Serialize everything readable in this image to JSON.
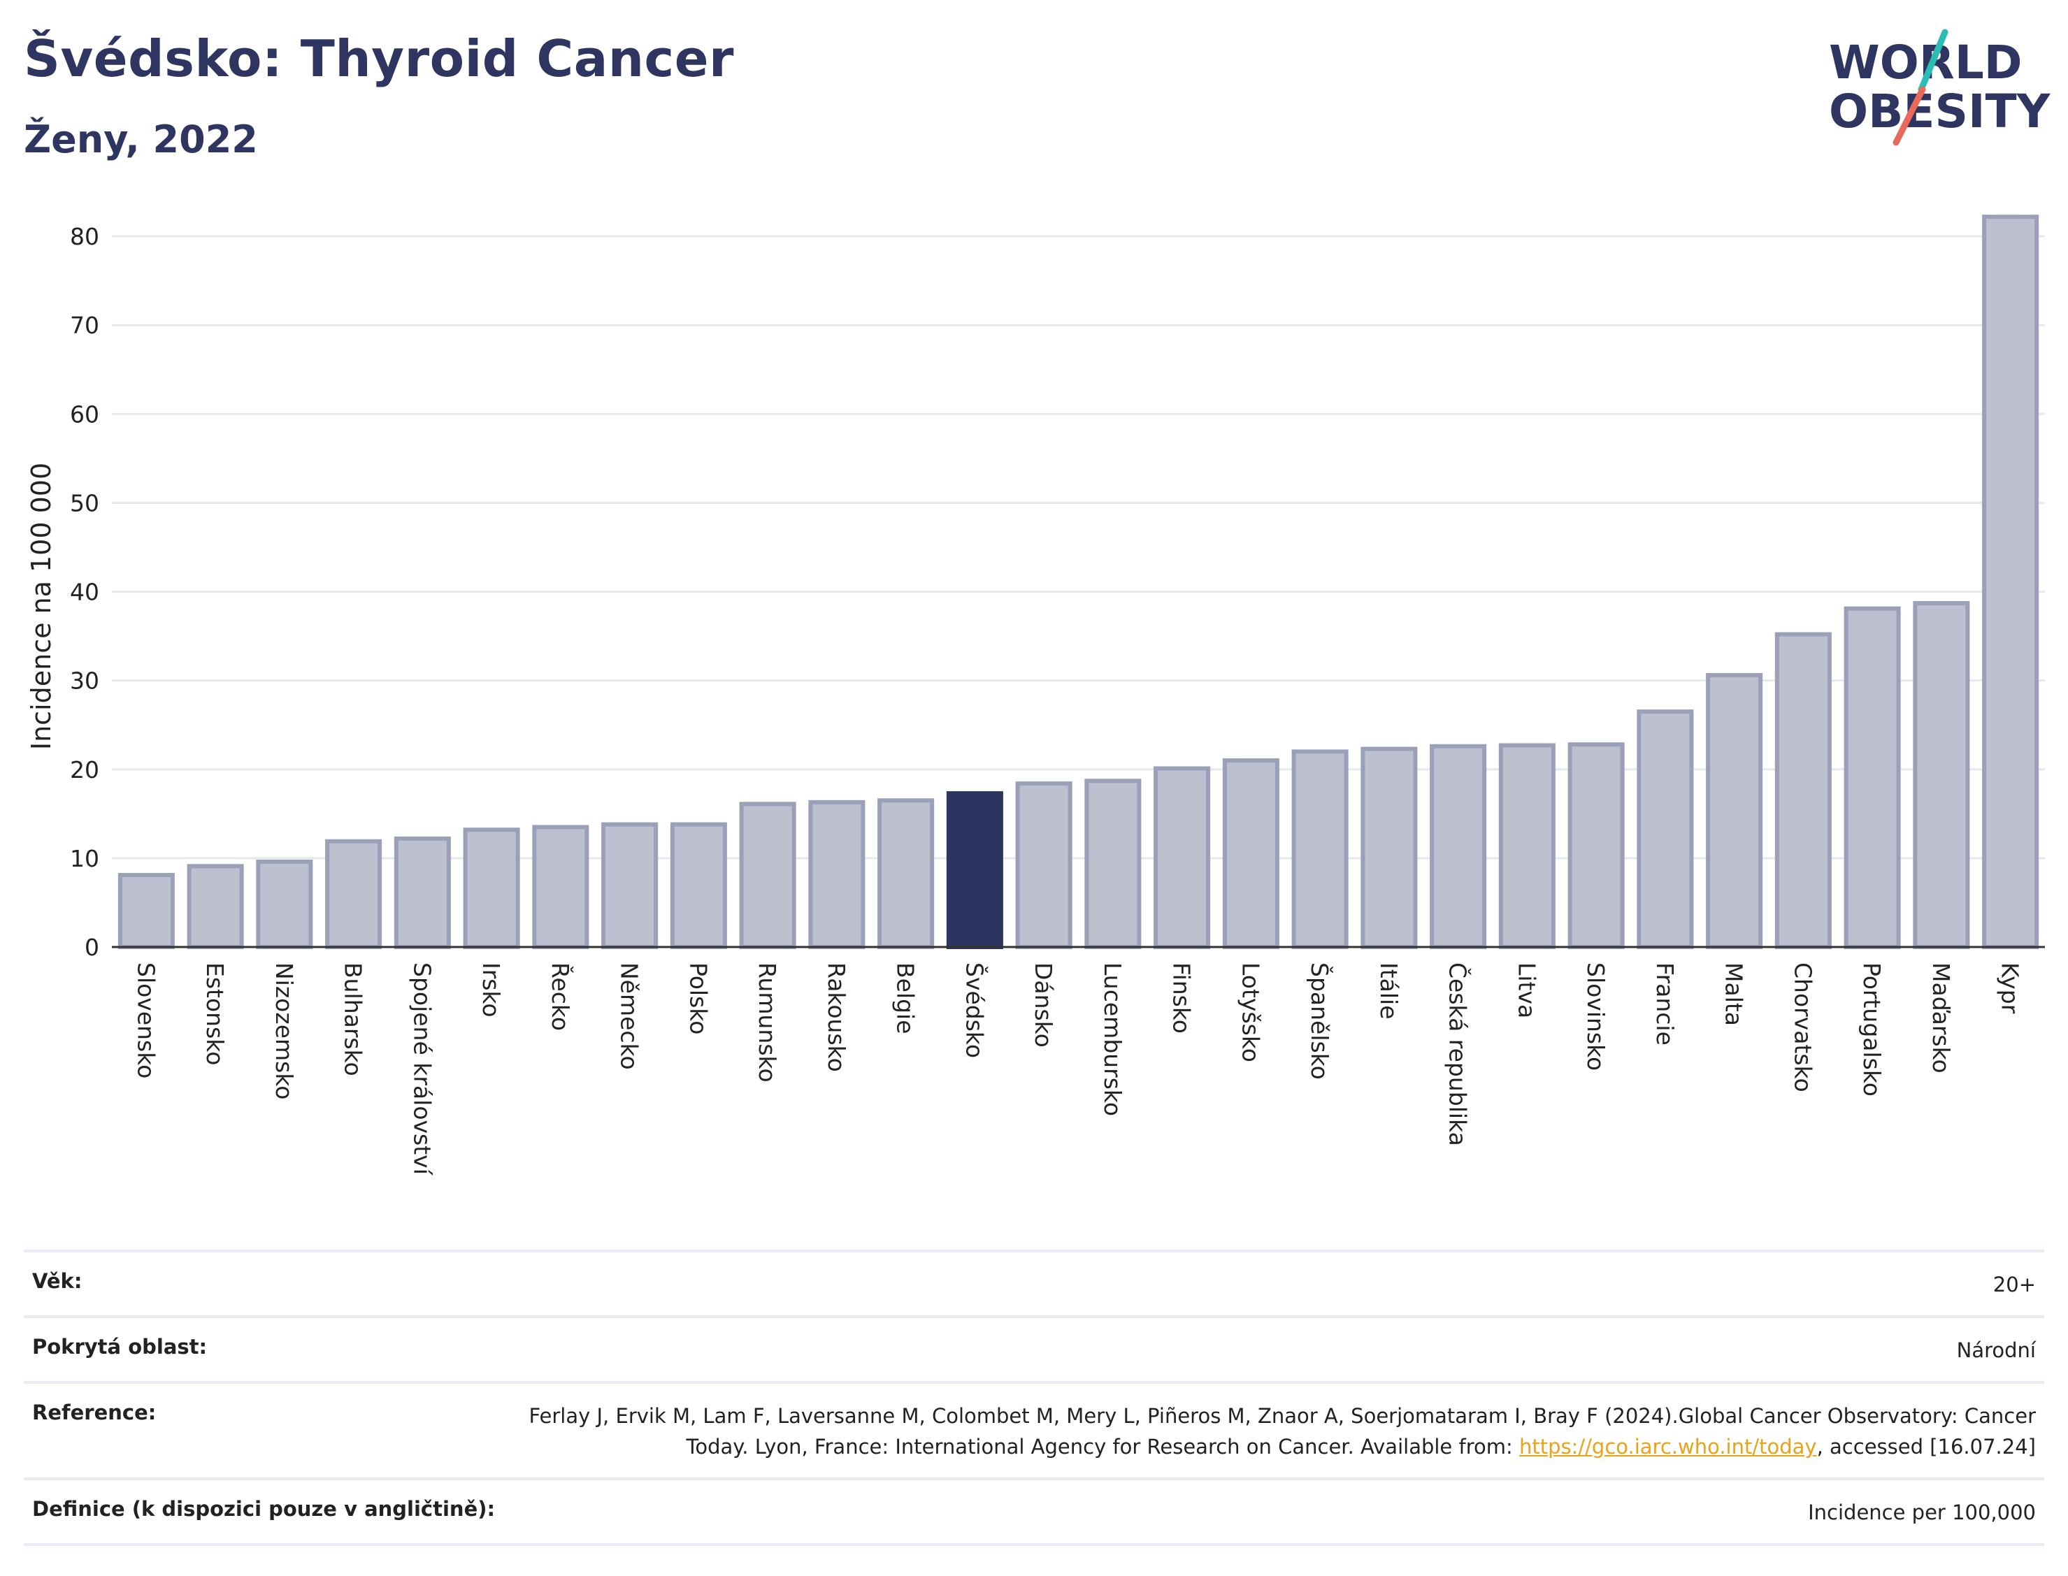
{
  "header": {
    "title": "Švédsko: Thyroid Cancer",
    "subtitle": "Ženy, 2022"
  },
  "logo": {
    "line1": "WORLD",
    "line2": "OBESITY"
  },
  "colors": {
    "bar": "#bcc0cf",
    "bar_border": "#9aa0b8",
    "highlight": "#2a3660",
    "grid": "#e6e8ee",
    "logo_text": "#2d3560",
    "logo_slash_teal": "#2bbcb4",
    "logo_slash_red": "#e86a5a"
  },
  "chart_data": {
    "type": "bar",
    "ylabel": "Incidence na 100 000",
    "ylim": [
      0,
      83
    ],
    "yticks": [
      0,
      10,
      20,
      30,
      40,
      50,
      60,
      70,
      80
    ],
    "grid": true,
    "highlight": "Švédsko",
    "categories": [
      "Slovensko",
      "Estonsko",
      "Nizozemsko",
      "Bulharsko",
      "Spojené království",
      "Irsko",
      "Řecko",
      "Německo",
      "Polsko",
      "Rumunsko",
      "Rakousko",
      "Belgie",
      "Švédsko",
      "Dánsko",
      "Lucembursko",
      "Finsko",
      "Lotyšsko",
      "Španělsko",
      "Itálie",
      "Česká republika",
      "Litva",
      "Slovinsko",
      "Francie",
      "Malta",
      "Chorvatsko",
      "Portugalsko",
      "Maďarsko",
      "Kypr"
    ],
    "values": [
      8.1,
      9.1,
      9.6,
      11.9,
      12.2,
      13.2,
      13.5,
      13.8,
      13.8,
      16.1,
      16.3,
      16.5,
      17.3,
      18.4,
      18.7,
      20.1,
      21.0,
      22.0,
      22.3,
      22.6,
      22.7,
      22.8,
      26.5,
      30.6,
      35.2,
      38.1,
      38.7,
      82.2
    ]
  },
  "meta": {
    "age_label": "Věk:",
    "age_value": "20+",
    "area_label": "Pokrytá oblast:",
    "area_value": "Národní",
    "ref_label": "Reference:",
    "ref_text_1": "Ferlay J, Ervik M, Lam F, Laversanne M, Colombet M, Mery L, Piñeros M, Znaor A, Soerjomataram I, Bray F (2024).Global Cancer Observatory: Cancer Today. Lyon, France: International Agency for Research on Cancer. Available from:",
    "ref_link": "https://gco.iarc.who.int/today",
    "ref_text_2": ", accessed [16.07.24]",
    "def_label": "Definice (k dispozici pouze v angličtině):",
    "def_value": "Incidence per 100,000"
  }
}
